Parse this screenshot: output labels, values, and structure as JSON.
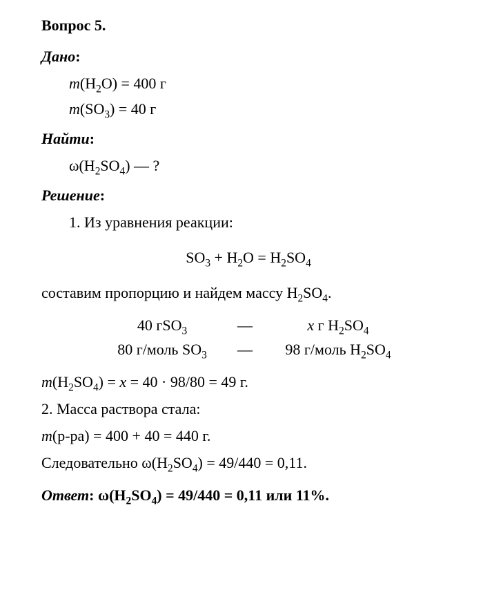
{
  "heading": "Вопрос 5.",
  "given": {
    "label": "Дано",
    "colon": ":",
    "line1_pre": "m(H",
    "line1_sub1": "2",
    "line1_mid": "O) = 400 г",
    "line2_pre": "m(SO",
    "line2_sub1": "3",
    "line2_mid": ") = 40 г"
  },
  "find": {
    "label": "Найти",
    "colon": ":",
    "line_pre": "ω(H",
    "line_sub1": "2",
    "line_mid": "SO",
    "line_sub2": "4",
    "line_post": ")   —  ?"
  },
  "solution": {
    "label": "Решение",
    "colon": ":",
    "step1": "1. Из уравнения реакции:",
    "eq_so3": "SO",
    "eq_so3_sub": "3",
    "eq_plus": " + H",
    "eq_h2_sub": "2",
    "eq_o_eq": "O = H",
    "eq_h2so4_h2sub": "2",
    "eq_so4": "SO",
    "eq_so4_sub": "4",
    "compose_pre": "составим пропорцию и найдем массу H",
    "compose_sub1": "2",
    "compose_mid": "SO",
    "compose_sub2": "4",
    "compose_post": ".",
    "prop": {
      "r1_left_pre": "40 гSO",
      "r1_left_sub": "3",
      "dash": "—",
      "r1_right_pre": "x г H",
      "r1_right_sub1": "2",
      "r1_right_mid": "SO",
      "r1_right_sub2": "4",
      "r2_left_pre": "80  г/моль SO",
      "r2_left_sub": "3",
      "r2_right_pre": "98 г/моль H",
      "r2_right_sub1": "2",
      "r2_right_mid": "SO",
      "r2_right_sub2": "4"
    },
    "mass_pre": "m(H",
    "mass_sub1": "2",
    "mass_mid": "SO",
    "mass_sub2": "4",
    "mass_post": ") = x = 40 · 98/80 = 49 г.",
    "step2": "2. Масса раствора стала:",
    "mass_sol": "m(р-ра) = 400 + 40 = 440 г.",
    "consequently_pre": "Следовательно ω(H",
    "consequently_sub1": "2",
    "consequently_mid": "SO",
    "consequently_sub2": "4",
    "consequently_post": ") = 49/440 = 0,11."
  },
  "answer": {
    "label": "Ответ",
    "pre": ": ω(H",
    "sub1": "2",
    "mid": "SO",
    "sub2": "4",
    "post": ") = 49/440 = 0,11 или 11%."
  }
}
